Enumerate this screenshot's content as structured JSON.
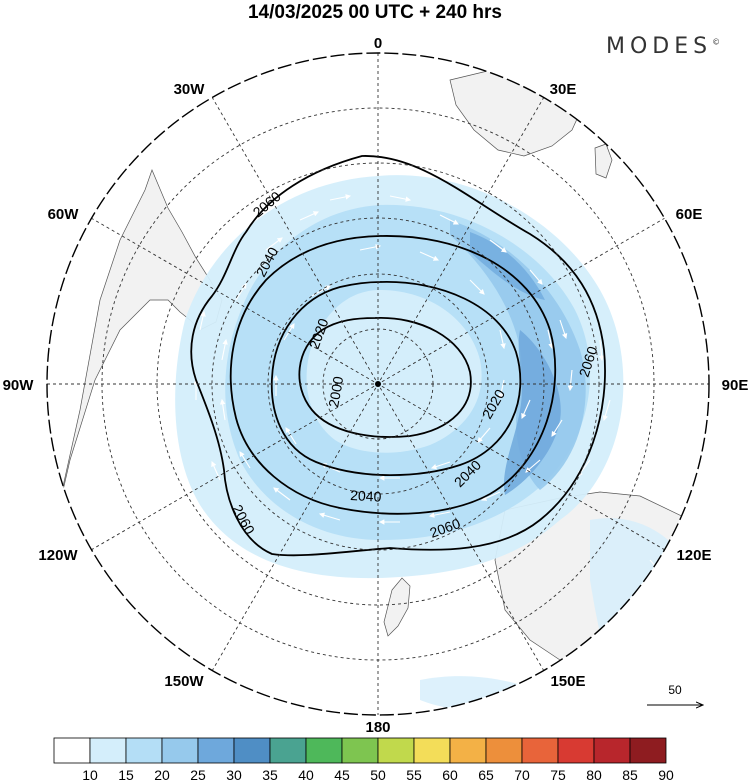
{
  "title": "14/03/2025  00 UTC  + 240 hrs",
  "brand": "MODES",
  "brand_mark": "©",
  "longitude_labels": [
    {
      "text": "0",
      "lon": 0
    },
    {
      "text": "30E",
      "lon": 30
    },
    {
      "text": "60E",
      "lon": 60
    },
    {
      "text": "90E",
      "lon": 90
    },
    {
      "text": "120E",
      "lon": 120
    },
    {
      "text": "150E",
      "lon": 150
    },
    {
      "text": "180",
      "lon": 180
    },
    {
      "text": "150W",
      "lon": -150
    },
    {
      "text": "120W",
      "lon": -120
    },
    {
      "text": "90W",
      "lon": -90
    },
    {
      "text": "60W",
      "lon": -60
    },
    {
      "text": "30W",
      "lon": -30
    }
  ],
  "contours": [
    {
      "label": "2000"
    },
    {
      "label": "2020"
    },
    {
      "label": "2040"
    },
    {
      "label": "2060"
    }
  ],
  "wind_reference": {
    "value": "50"
  },
  "colorbar": {
    "labels": [
      "10",
      "15",
      "20",
      "25",
      "30",
      "35",
      "40",
      "45",
      "50",
      "55",
      "60",
      "65",
      "70",
      "75",
      "80",
      "85",
      "90"
    ],
    "colors": [
      "#ffffff",
      "#d4eefb",
      "#b4def6",
      "#96c9ec",
      "#6ea8dc",
      "#4f8ec5",
      "#4aa391",
      "#4eb85a",
      "#7ec550",
      "#c1d94c",
      "#f3dd59",
      "#f3b146",
      "#ed8f3b",
      "#e8643a",
      "#d83a32",
      "#b8262c",
      "#8e1c20"
    ]
  }
}
